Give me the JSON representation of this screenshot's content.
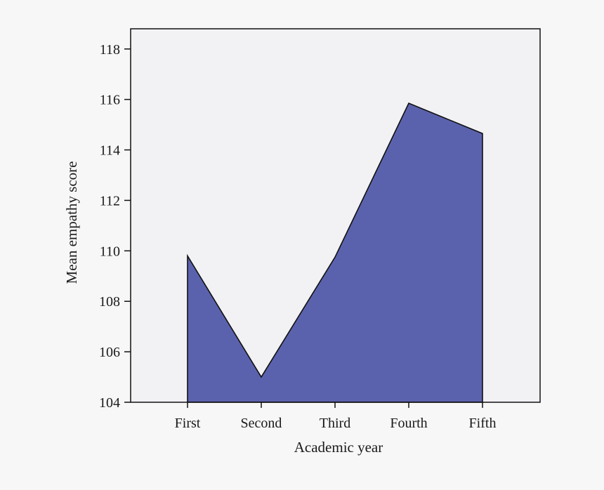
{
  "chart_data": {
    "type": "area",
    "categories": [
      "First",
      "Second",
      "Third",
      "Fourth",
      "Fifth"
    ],
    "values": [
      109.8,
      105.0,
      109.75,
      115.85,
      114.65
    ],
    "xlabel": "Academic year",
    "ylabel": "Mean empathy score",
    "ylim": [
      104,
      118.8
    ],
    "yticks": [
      104,
      106,
      108,
      110,
      112,
      114,
      116,
      118
    ],
    "grid": false,
    "legend": "none",
    "colors": {
      "area_fill": "#5b62ad",
      "area_stroke": "#111111",
      "plot_background": "#f2f1f4",
      "page_background": "#f7f7f7",
      "axis": "#111111"
    }
  }
}
